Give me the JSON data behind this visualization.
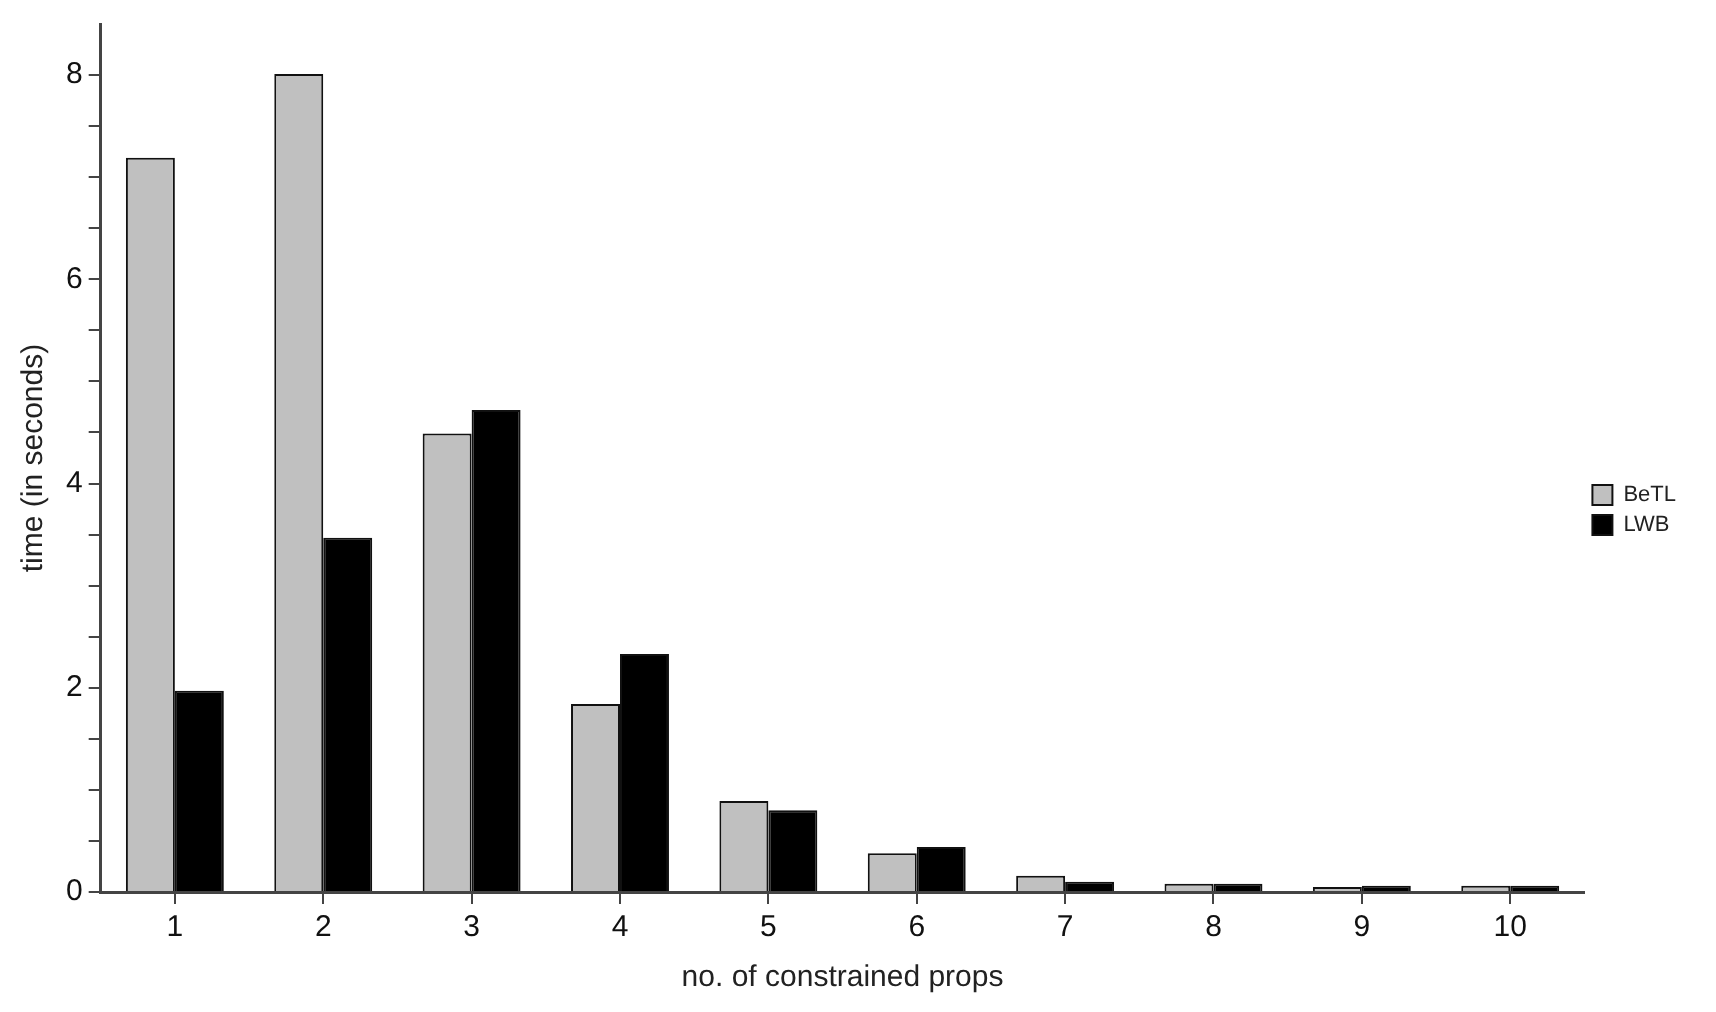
{
  "chart_data": {
    "type": "bar",
    "xlabel": "no. of constrained props",
    "ylabel": "time (in seconds)",
    "categories": [
      "1",
      "2",
      "3",
      "4",
      "5",
      "6",
      "7",
      "8",
      "9",
      "10"
    ],
    "series": [
      {
        "name": "BeTL",
        "color": "#c0c0c0",
        "values": [
          7.19,
          8.01,
          4.49,
          1.84,
          0.89,
          0.38,
          0.16,
          0.08,
          0.05,
          0.06
        ]
      },
      {
        "name": "LWB",
        "color": "#000000",
        "values": [
          1.97,
          3.47,
          4.72,
          2.33,
          0.8,
          0.44,
          0.1,
          0.08,
          0.06,
          0.06
        ]
      }
    ],
    "ylim": [
      0,
      8.5
    ],
    "yticks": [
      0,
      {
        "value": 0.5,
        "label": null
      },
      {
        "value": 1,
        "label": null
      },
      {
        "value": 1.5,
        "label": null
      },
      2,
      {
        "value": 2.5,
        "label": null
      },
      {
        "value": 3,
        "label": null
      },
      {
        "value": 3.5,
        "label": null
      },
      4,
      {
        "value": 4.5,
        "label": null
      },
      {
        "value": 5,
        "label": null
      },
      {
        "value": 5.5,
        "label": null
      },
      6,
      {
        "value": 6.5,
        "label": null
      },
      {
        "value": 7,
        "label": null
      },
      {
        "value": 7.5,
        "label": null
      },
      8
    ],
    "grid": false,
    "legend": "right"
  }
}
